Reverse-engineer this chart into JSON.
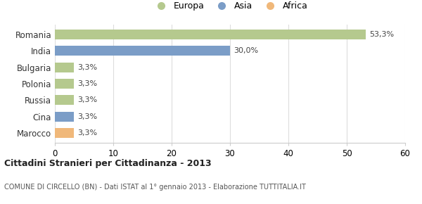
{
  "categories": [
    "Romania",
    "India",
    "Bulgaria",
    "Polonia",
    "Russia",
    "Cina",
    "Marocco"
  ],
  "values": [
    53.3,
    30.0,
    3.3,
    3.3,
    3.3,
    3.3,
    3.3
  ],
  "labels": [
    "53,3%",
    "30,0%",
    "3,3%",
    "3,3%",
    "3,3%",
    "3,3%",
    "3,3%"
  ],
  "colors": [
    "#b5c98e",
    "#7b9dc7",
    "#b5c98e",
    "#b5c98e",
    "#b5c98e",
    "#7b9dc7",
    "#f0b87a"
  ],
  "legend_labels": [
    "Europa",
    "Asia",
    "Africa"
  ],
  "legend_colors": [
    "#b5c98e",
    "#7b9dc7",
    "#f0b87a"
  ],
  "title": "Cittadini Stranieri per Cittadinanza - 2013",
  "subtitle": "COMUNE DI CIRCELLO (BN) - Dati ISTAT al 1° gennaio 2013 - Elaborazione TUTTITALIA.IT",
  "xlim": [
    0,
    60
  ],
  "xticks": [
    0,
    10,
    20,
    30,
    40,
    50,
    60
  ],
  "background_color": "#ffffff",
  "bar_height": 0.6
}
